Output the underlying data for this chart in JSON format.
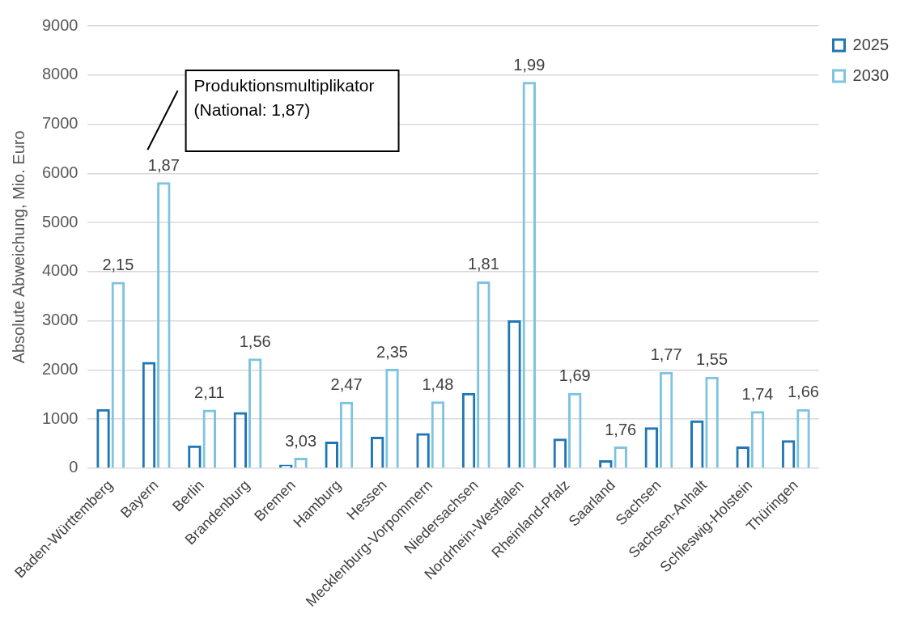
{
  "chart_data": {
    "type": "bar",
    "ylabel": "Absolute Abweichung, Mio. Euro",
    "categories": [
      "Baden-Württemberg",
      "Bayern",
      "Berlin",
      "Brandenburg",
      "Bremen",
      "Hamburg",
      "Hessen",
      "Mecklenburg-Vorpommern",
      "Niedersachsen",
      "Nordrhein-Westfalen",
      "Rheinland-Pfalz",
      "Saarland",
      "Sachsen",
      "Sachsen-Anhalt",
      "Schleswig-Holstein",
      "Thüringen"
    ],
    "series": [
      {
        "name": "2025",
        "color": "#1f77b4",
        "values": [
          1200,
          2160,
          460,
          1140,
          70,
          540,
          640,
          710,
          1530,
          3010,
          600,
          160,
          830,
          970,
          440,
          570
        ]
      },
      {
        "name": "2030",
        "color": "#7ec4e0",
        "values": [
          3790,
          5820,
          1190,
          2230,
          210,
          1350,
          2020,
          1360,
          3800,
          7860,
          1530,
          440,
          1960,
          1860,
          1160,
          1200
        ]
      }
    ],
    "ylim": [
      0,
      9000
    ],
    "yticks": [
      0,
      1000,
      2000,
      3000,
      4000,
      5000,
      6000,
      7000,
      8000,
      9000
    ],
    "grid": "y",
    "legend": "top right",
    "annotations": [
      "Produktionsmultiplikator\n(National: 1,87)",
      {
        "text": "2,15",
        "x": "Baden-Württemberg",
        "y": 3790
      },
      {
        "text": "1,87",
        "x": "Bayern",
        "y": 5820
      },
      {
        "text": "2,11",
        "x": "Berlin",
        "y": 1190
      },
      {
        "text": "1,56",
        "x": "Brandenburg",
        "y": 2230
      },
      {
        "text": "3,03",
        "x": "Bremen",
        "y": 210
      },
      {
        "text": "2,47",
        "x": "Hamburg",
        "y": 1350
      },
      {
        "text": "2,35",
        "x": "Hessen",
        "y": 2020
      },
      {
        "text": "1,48",
        "x": "Mecklenburg-Vorpommern",
        "y": 1360
      },
      {
        "text": "1,81",
        "x": "Niedersachsen",
        "y": 3800
      },
      {
        "text": "1,99",
        "x": "Nordrhein-Westfalen",
        "y": 7860
      },
      {
        "text": "1,69",
        "x": "Rheinland-Pfalz",
        "y": 1530
      },
      {
        "text": "1,76",
        "x": "Saarland",
        "y": 440
      },
      {
        "text": "1,77",
        "x": "Sachsen",
        "y": 1960
      },
      {
        "text": "1,55",
        "x": "Sachsen-Anhalt",
        "y": 1860
      },
      {
        "text": "1,74",
        "x": "Schleswig-Holstein",
        "y": 1160
      },
      {
        "text": "1,66",
        "x": "Thüringen",
        "y": 1200
      }
    ]
  }
}
